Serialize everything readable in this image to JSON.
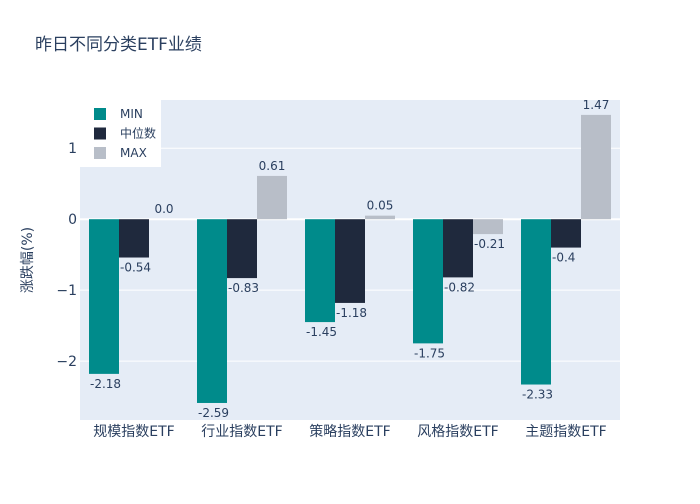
{
  "chart_data": {
    "type": "bar",
    "title": "昨日不同分类ETF业绩",
    "xlabel": "",
    "ylabel": "涨跌幅(%)",
    "categories": [
      "规模指数ETF",
      "行业指数ETF",
      "策略指数ETF",
      "风格指数ETF",
      "主题指数ETF"
    ],
    "series": [
      {
        "name": "MIN",
        "color": "#008b8b",
        "values": [
          -2.18,
          -2.59,
          -1.45,
          -1.75,
          -2.33
        ]
      },
      {
        "name": "中位数",
        "color": "#1f293d",
        "values": [
          -0.54,
          -0.83,
          -1.18,
          -0.82,
          -0.4
        ]
      },
      {
        "name": "MAX",
        "color": "#b8bec8",
        "values": [
          0.0,
          0.61,
          0.05,
          -0.21,
          1.47
        ]
      }
    ],
    "data_labels": [
      [
        "-2.18",
        "-2.59",
        "-1.45",
        "-1.75",
        "-2.33"
      ],
      [
        "-0.54",
        "-0.83",
        "-1.18",
        "-0.82",
        "-0.4"
      ],
      [
        "0.0",
        "0.61",
        "0.05",
        "-0.21",
        "1.47"
      ]
    ],
    "ylim": [
      -2.83,
      1.68
    ],
    "yticks": [
      -2,
      -1,
      0,
      1
    ],
    "ytick_labels": [
      "−2",
      "−1",
      "0",
      "1"
    ],
    "grid": true,
    "legend_position": "top-left",
    "plot_background": "#e5ecf6"
  }
}
